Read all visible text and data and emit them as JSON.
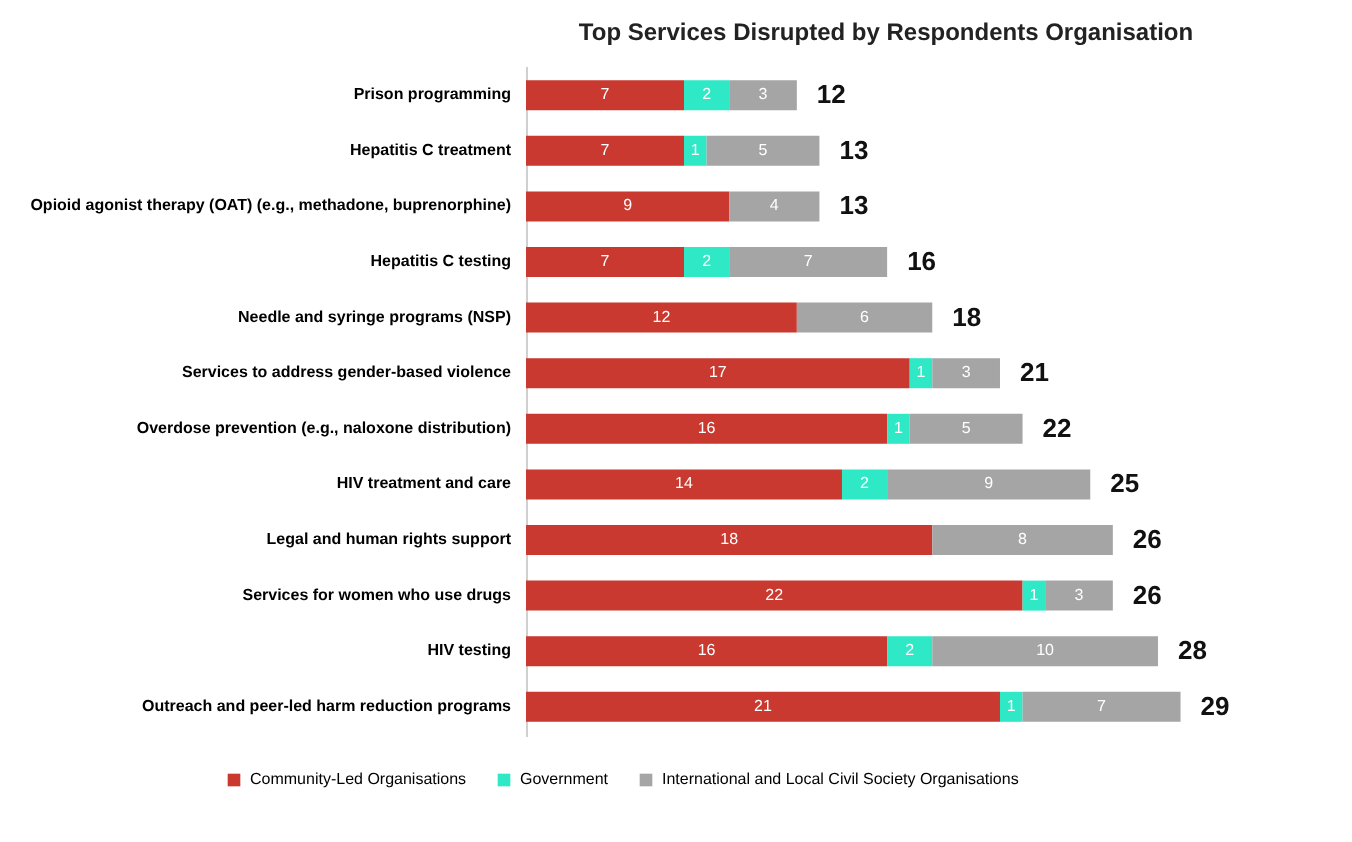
{
  "chart_data": {
    "type": "bar",
    "orientation": "horizontal",
    "stacked": true,
    "title": "Top Services Disrupted by Respondents Organisation",
    "categories": [
      "Prison programming",
      "Hepatitis C treatment",
      "Opioid agonist therapy (OAT) (e.g., methadone, buprenorphine)",
      "Hepatitis C testing",
      "Needle and syringe programs (NSP)",
      "Services to address gender-based violence",
      "Overdose prevention (e.g., naloxone distribution)",
      "HIV treatment and care",
      "Legal and human rights support",
      "Services for women who use drugs",
      "HIV testing",
      "Outreach and peer-led harm reduction programs"
    ],
    "series": [
      {
        "name": "Community-Led Organisations",
        "color": "#c9392f",
        "values": [
          7,
          7,
          9,
          7,
          12,
          17,
          16,
          14,
          18,
          22,
          16,
          21
        ]
      },
      {
        "name": "Government",
        "color": "#2ee8c6",
        "values": [
          2,
          1,
          null,
          2,
          null,
          1,
          1,
          2,
          null,
          1,
          2,
          1
        ]
      },
      {
        "name": "International and Local Civil Society Organisations",
        "color": "#a5a5a5",
        "values": [
          3,
          5,
          4,
          7,
          6,
          3,
          5,
          9,
          8,
          3,
          10,
          7
        ]
      }
    ],
    "data_labels": true,
    "totals": [
      "12",
      "13",
      "13",
      "16",
      "18",
      "21",
      "22",
      "25",
      "26",
      "26",
      "28",
      "29"
    ],
    "legend": "bottom",
    "grid": false
  }
}
